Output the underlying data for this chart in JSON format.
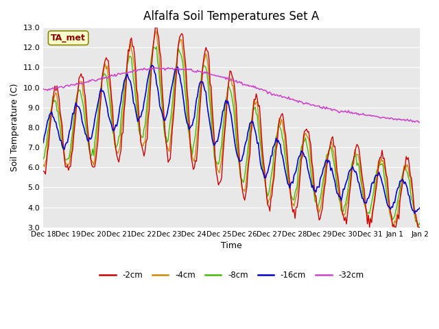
{
  "title": "Alfalfa Soil Temperatures Set A",
  "xlabel": "Time",
  "ylabel": "Soil Temperature (C)",
  "ylim": [
    3.0,
    13.0
  ],
  "yticks": [
    3.0,
    4.0,
    5.0,
    6.0,
    7.0,
    8.0,
    9.0,
    10.0,
    11.0,
    12.0,
    13.0
  ],
  "background_color": "#e8e8e8",
  "colors": {
    "-2cm": "#cc0000",
    "-4cm": "#cc8800",
    "-8cm": "#44bb00",
    "-16cm": "#0000cc",
    "-32cm": "#cc44cc"
  },
  "legend_labels": [
    "-2cm",
    "-4cm",
    "-8cm",
    "-16cm",
    "-32cm"
  ],
  "ta_met_label": "TA_met",
  "x_tick_labels": [
    "Dec 18",
    "Dec 19",
    "Dec 20",
    "Dec 21",
    "Dec 22",
    "Dec 23",
    "Dec 24",
    "Dec 25",
    "Dec 26",
    "Dec 27",
    "Dec 28",
    "Dec 29",
    "Dec 30",
    "Dec 31",
    "Jan 1",
    "Jan 2"
  ],
  "num_days": 15,
  "points_per_day": 24
}
